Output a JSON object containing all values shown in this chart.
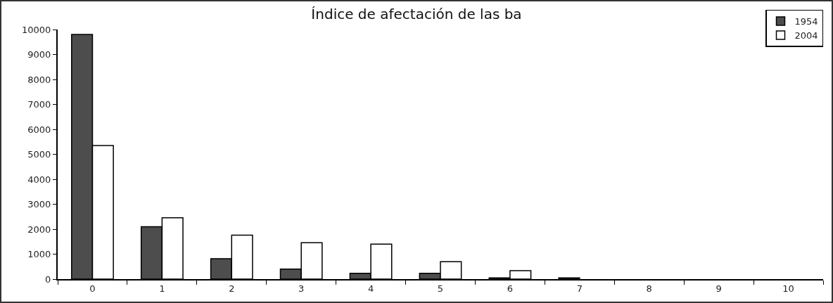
{
  "chart_data": {
    "type": "bar",
    "title": "Índice de afectación de las ba",
    "categories": [
      "0",
      "1",
      "2",
      "3",
      "4",
      "5",
      "6",
      "7",
      "8",
      "9",
      "10"
    ],
    "series": [
      {
        "name": "1954",
        "color": "#4d4d4d",
        "values": [
          9800,
          2100,
          820,
          400,
          230,
          230,
          50,
          50,
          null,
          null,
          null
        ]
      },
      {
        "name": "2004",
        "color": "#ffffff",
        "values": [
          5350,
          2460,
          1760,
          1460,
          1400,
          700,
          340,
          null,
          null,
          null,
          null
        ]
      }
    ],
    "ylim": [
      0,
      10000
    ],
    "yticks": [
      0,
      1000,
      2000,
      3000,
      4000,
      5000,
      6000,
      7000,
      8000,
      9000,
      10000
    ],
    "grid": false,
    "legend": "top right"
  }
}
